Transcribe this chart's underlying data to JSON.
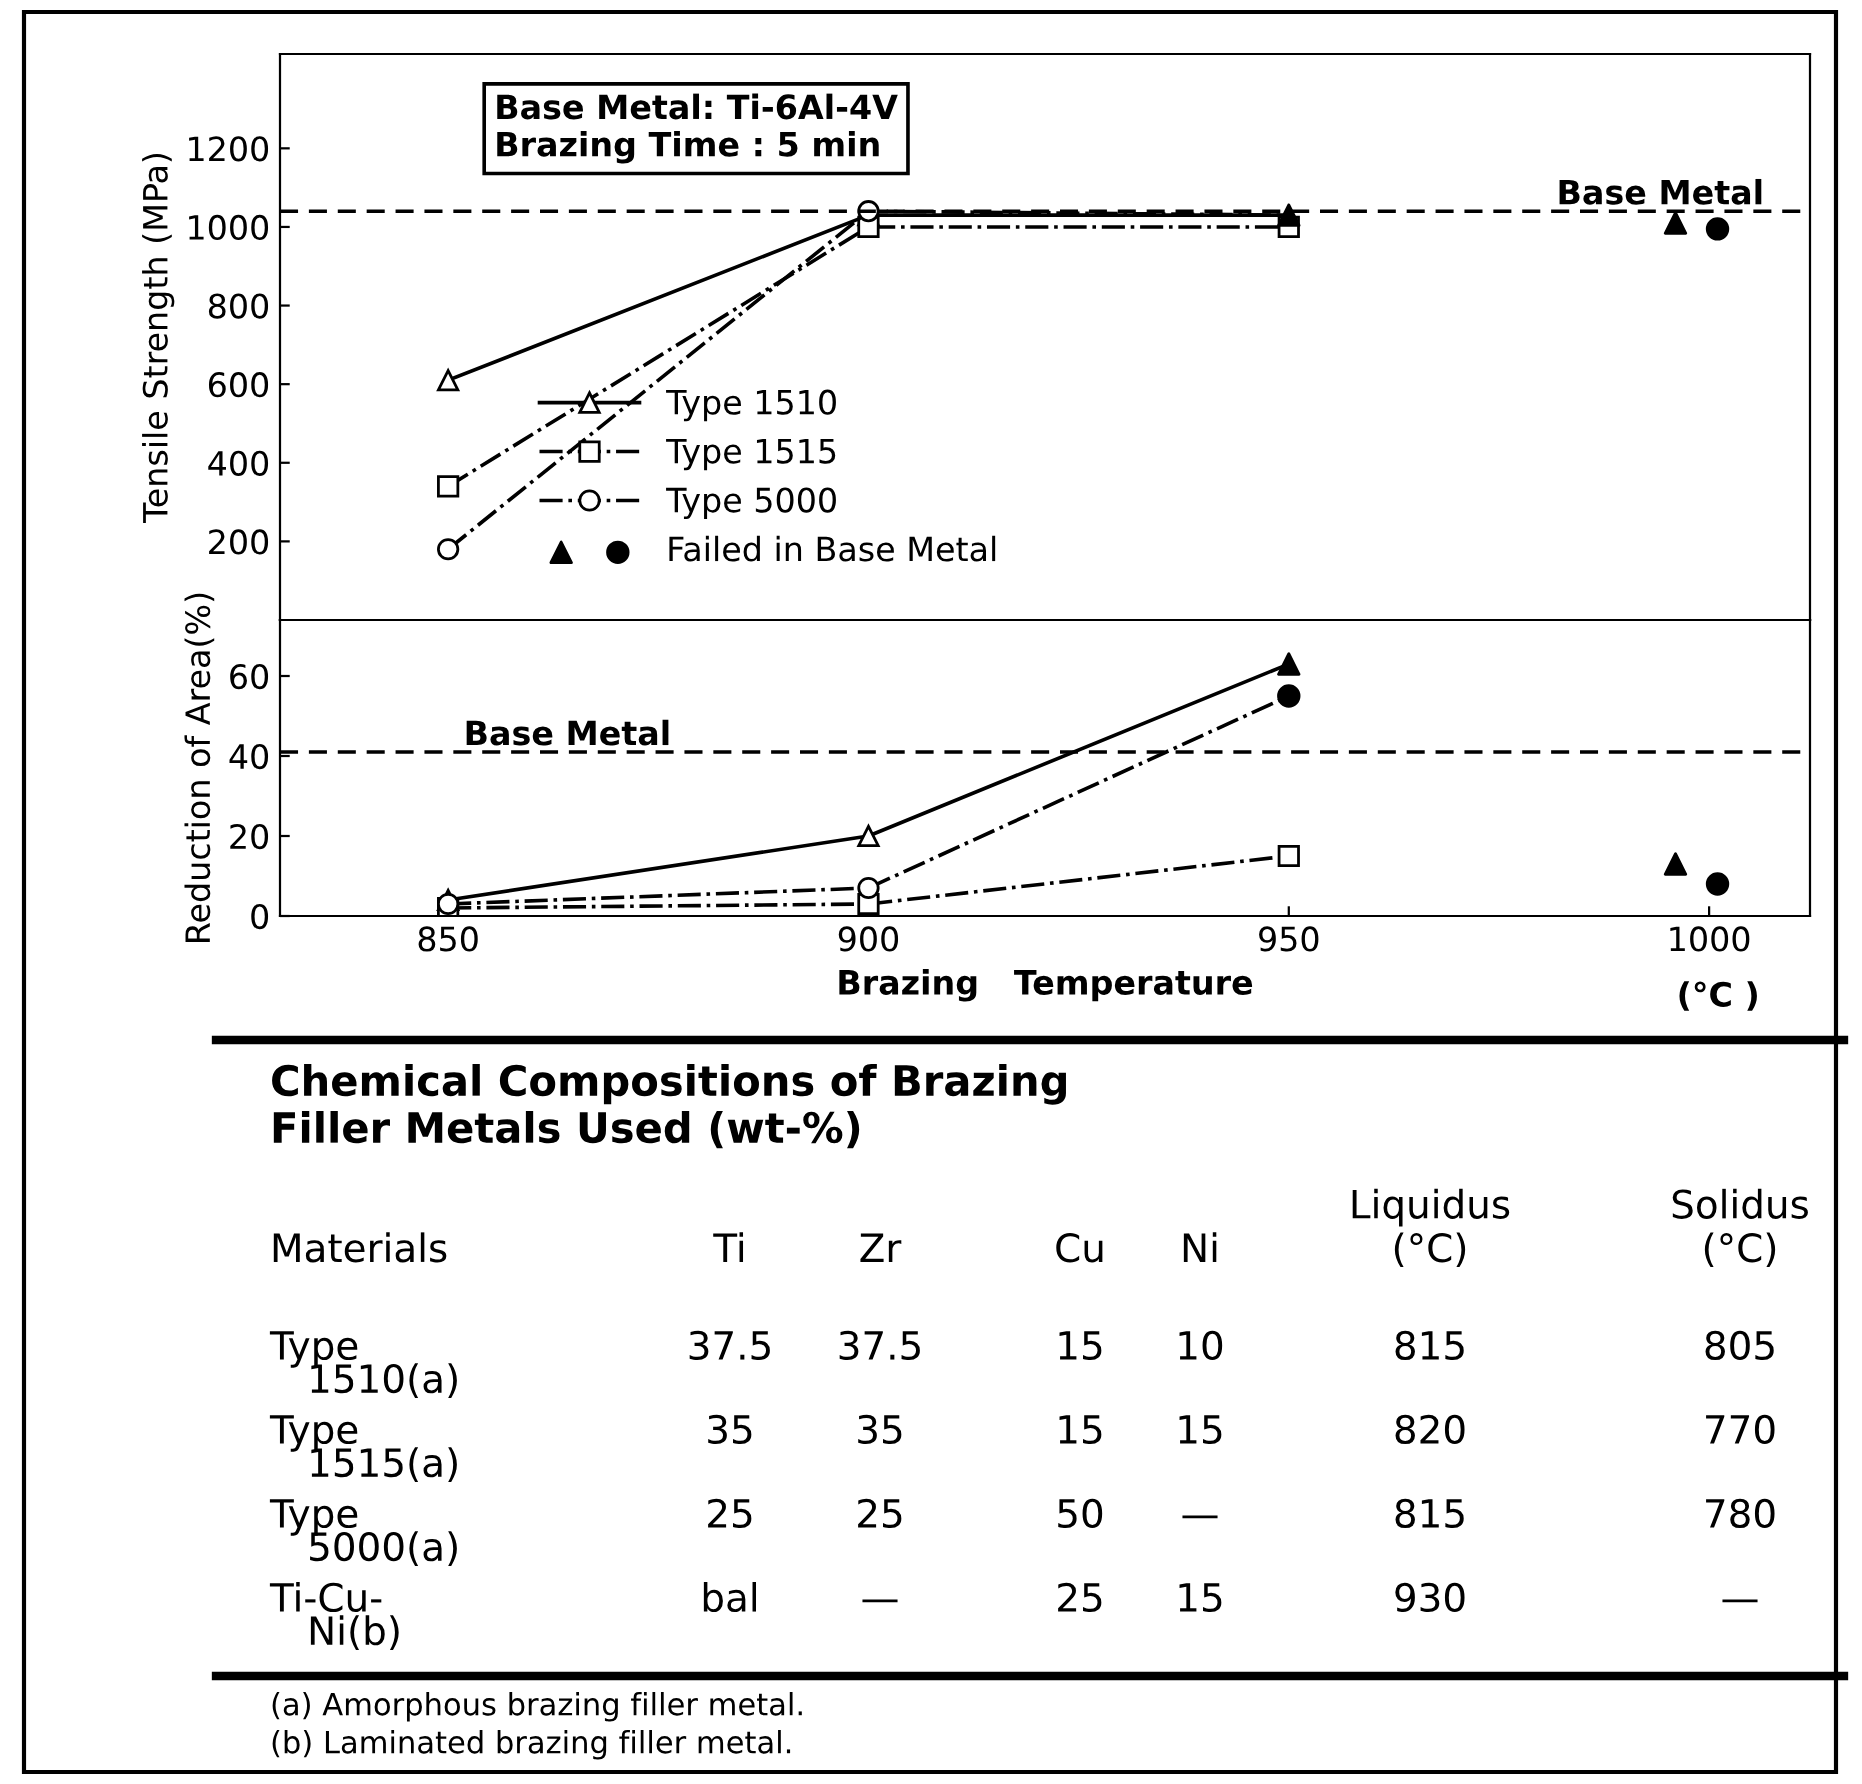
{
  "chart_data": [
    {
      "type": "line",
      "ylabel": "Tensile Strength (MPa)",
      "xlim": [
        830,
        1012
      ],
      "ylim": [
        0,
        1440
      ],
      "yticks": [
        200,
        400,
        600,
        800,
        1000,
        1200
      ],
      "tick_labels": "y",
      "grid": false,
      "legend": "center left",
      "annotations": [
        "Base Metal: Ti-6Al-4V\nBrazing Time : 5 min"
      ],
      "ref_lines": [
        {
          "axis": "y",
          "value": 1040,
          "label": "Base Metal",
          "color": "#000000",
          "line_style": "dashed"
        }
      ],
      "series": [
        {
          "name": "Type 1510",
          "color": "#000000",
          "x": [
            850,
            900,
            950
          ],
          "values": [
            610,
            1030,
            1030
          ],
          "marker": "triangle",
          "line_style": "solid"
        },
        {
          "name": "Type 1515",
          "color": "#000000",
          "x": [
            850,
            900,
            950
          ],
          "values": [
            340,
            1000,
            1000
          ],
          "marker": "square",
          "line_style": "dashdot"
        },
        {
          "name": "Type 5000",
          "color": "#000000",
          "x": [
            850,
            900,
            950
          ],
          "values": [
            180,
            1040,
            1030
          ],
          "marker": "circle",
          "line_style": "dashdot"
        },
        {
          "type": "scatter",
          "color": "#000000",
          "x": [
            950,
            996
          ],
          "values": [
            1030,
            1010
          ],
          "marker": "triangle"
        },
        {
          "name": "Failed in Base Metal",
          "type": "scatter",
          "color": "#000000",
          "x": [
            1001
          ],
          "values": [
            995
          ],
          "marker": "circle"
        }
      ]
    },
    {
      "type": "line",
      "ylabel": "Reduction of Area(%)",
      "xlabel": "Brazing   Temperature",
      "xlim": [
        830,
        1012
      ],
      "ylim": [
        0,
        74
      ],
      "xticks": [
        850,
        900,
        950,
        1000
      ],
      "yticks": [
        0,
        20,
        40,
        60
      ],
      "grid": false,
      "annotations": [
        "(°C )"
      ],
      "ref_lines": [
        {
          "axis": "y",
          "value": 41,
          "label": "Base Metal",
          "color": "#000000",
          "line_style": "dashed"
        }
      ],
      "series": [
        {
          "color": "#000000",
          "x": [
            850,
            900,
            950
          ],
          "values": [
            4,
            20,
            63
          ],
          "marker": "triangle",
          "line_style": "solid"
        },
        {
          "color": "#000000",
          "x": [
            850,
            900,
            950
          ],
          "values": [
            2,
            3,
            15
          ],
          "marker": "square",
          "line_style": "dashdot"
        },
        {
          "color": "#000000",
          "x": [
            850,
            900,
            950
          ],
          "values": [
            3,
            7,
            55
          ],
          "marker": "circle",
          "line_style": "dashdot"
        },
        {
          "type": "scatter",
          "color": "#000000",
          "x": [
            950,
            996
          ],
          "values": [
            63,
            13
          ],
          "marker": "triangle"
        },
        {
          "type": "scatter",
          "color": "#000000",
          "x": [
            950,
            1001
          ],
          "values": [
            55,
            8
          ],
          "marker": "circle"
        }
      ]
    },
    {
      "type": "other",
      "title": "Chemical Compositions of Brazing\nFiller Metals Used (wt-%)",
      "categories": [
        "Materials",
        "Ti",
        "Zr",
        "Cu",
        "Ni",
        "Liquidus\n(°C)",
        "Solidus\n(°C)"
      ],
      "y_categories": [
        "Type\n   1510(a)",
        "Type\n   1515(a)",
        "Type\n   5000(a)",
        "Ti-Cu-\n   Ni(b)"
      ],
      "cell_labels": [
        [
          "37.5",
          "37.5",
          "15",
          "10",
          "815",
          "805"
        ],
        [
          "35",
          "35",
          "15",
          "15",
          "820",
          "770"
        ],
        [
          "25",
          "25",
          "50",
          "—",
          "815",
          "780"
        ],
        [
          "bal",
          "—",
          "25",
          "15",
          "930",
          "—"
        ]
      ],
      "annotations": [
        "(a) Amorphous brazing filler metal.",
        "(b) Laminated brazing filler metal."
      ]
    }
  ]
}
